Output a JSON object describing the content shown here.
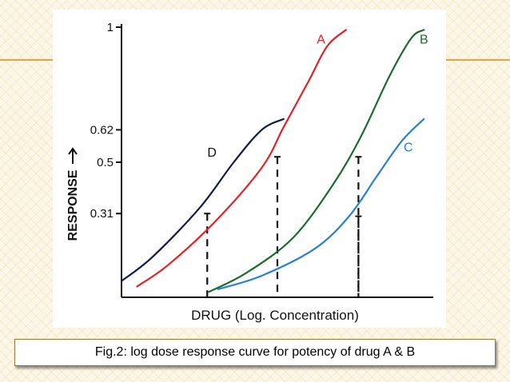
{
  "caption": "Fig.2: log dose response curve for potency of drug A & B",
  "chart_data": {
    "type": "line",
    "xlabel": "DRUG (Log. Concentration)",
    "ylabel": "RESPONSE",
    "ylim": [
      0,
      1
    ],
    "yticks": [
      {
        "value": 1,
        "label": "1"
      },
      {
        "value": 0.62,
        "label": "0.62"
      },
      {
        "value": 0.5,
        "label": "0.5"
      },
      {
        "value": 0.31,
        "label": "0.31"
      }
    ],
    "series": [
      {
        "name": "A",
        "color": "#e0242b",
        "points": [
          [
            0.05,
            0.04
          ],
          [
            0.15,
            0.12
          ],
          [
            0.3,
            0.28
          ],
          [
            0.45,
            0.48
          ],
          [
            0.52,
            0.63
          ],
          [
            0.6,
            0.8
          ],
          [
            0.66,
            0.93
          ],
          [
            0.72,
            0.99
          ]
        ]
      },
      {
        "name": "B",
        "color": "#1e6b2e",
        "points": [
          [
            0.28,
            0.02
          ],
          [
            0.4,
            0.09
          ],
          [
            0.55,
            0.22
          ],
          [
            0.68,
            0.42
          ],
          [
            0.77,
            0.6
          ],
          [
            0.86,
            0.82
          ],
          [
            0.93,
            0.96
          ],
          [
            0.97,
            0.99
          ]
        ]
      },
      {
        "name": "C",
        "color": "#2a80d6",
        "points": [
          [
            0.31,
            0.03
          ],
          [
            0.45,
            0.08
          ],
          [
            0.62,
            0.18
          ],
          [
            0.73,
            0.3
          ],
          [
            0.82,
            0.45
          ],
          [
            0.9,
            0.58
          ],
          [
            0.97,
            0.66
          ]
        ]
      },
      {
        "name": "D",
        "color": "#161a45",
        "points": [
          [
            0.0,
            0.06
          ],
          [
            0.1,
            0.15
          ],
          [
            0.25,
            0.33
          ],
          [
            0.36,
            0.5
          ],
          [
            0.45,
            0.62
          ],
          [
            0.52,
            0.66
          ]
        ]
      }
    ],
    "dashed_markers": [
      {
        "x": 0.275,
        "y": 0.31
      },
      {
        "x": 0.5,
        "y": 0.52
      },
      {
        "x": 0.76,
        "y": 0.52
      },
      {
        "x": 0.76,
        "y": 0.3
      }
    ],
    "grid": false
  }
}
